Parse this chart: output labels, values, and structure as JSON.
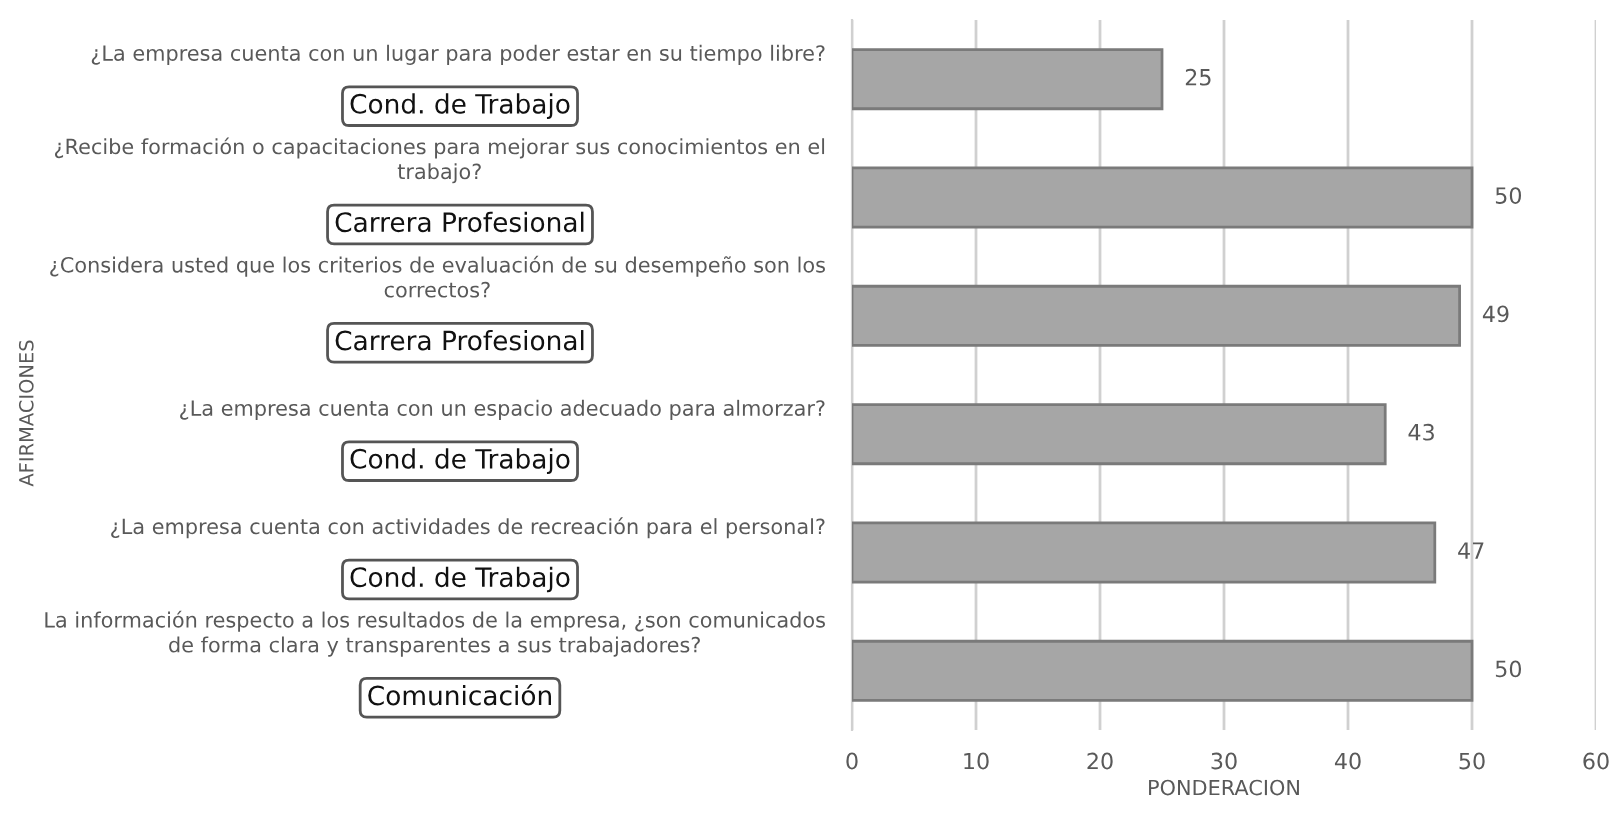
{
  "chart_data": {
    "type": "bar",
    "orientation": "horizontal",
    "xlabel": "PONDERACION",
    "ylabel": "AFIRMACIONES",
    "categories": [
      "¿La empresa cuenta con un lugar para poder estar en su tiempo libre?",
      "¿Recibe formación o capacitaciones para mejorar sus conocimientos en el\ntrabajo?",
      "¿Considera usted que los criterios de evaluación de su desempeño son los\ncorrectos?",
      "¿La empresa cuenta con un espacio adecuado para almorzar?",
      "¿La empresa cuenta con actividades de recreación para el personal?",
      "La información respecto a los resultados de la empresa, ¿son comunicados\nde forma clara y transparentes a sus trabajadores?"
    ],
    "values": [
      25,
      50,
      49,
      43,
      47,
      50
    ],
    "color": "#a6a6a6",
    "xlim": [
      0,
      60
    ],
    "xticks": [
      0,
      10,
      20,
      30,
      40,
      50,
      60
    ],
    "grid": "x",
    "data_labels": true,
    "annotations": [
      "Cond. de Trabajo",
      "Carrera Profesional",
      "Carrera Profesional",
      "Cond. de Trabajo",
      "Cond. de Trabajo",
      "Comunicación"
    ]
  }
}
